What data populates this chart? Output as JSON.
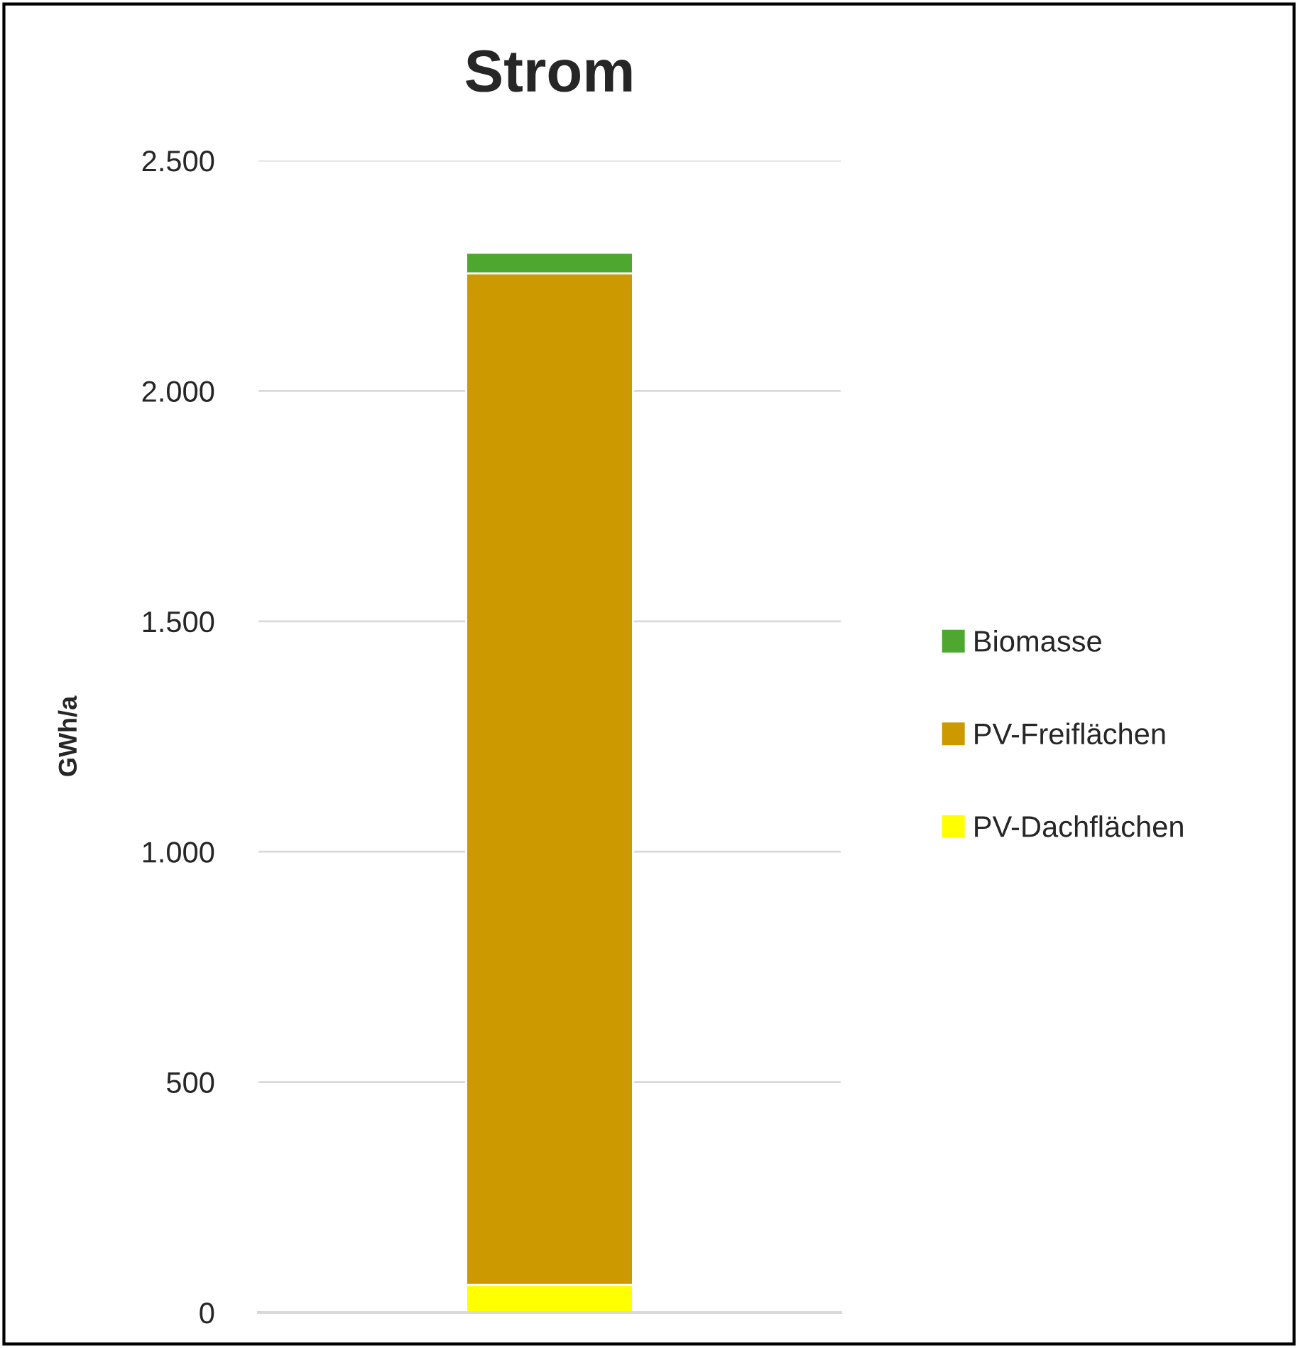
{
  "chart_data": {
    "type": "bar",
    "title": "Strom",
    "ylabel": "GWh/a",
    "stacked": true,
    "categories": [
      null
    ],
    "series": [
      {
        "name": "PV-Dachflächen",
        "color": "#ffff00",
        "values": [
          60
        ]
      },
      {
        "name": "PV-Freiflächen",
        "color": "#cc9900",
        "values": [
          2195
        ]
      },
      {
        "name": "Biomasse",
        "color": "#4ea72e",
        "values": [
          45
        ]
      }
    ],
    "ylim": [
      0,
      2500
    ],
    "yticks": [
      {
        "value": 0,
        "label": "0"
      },
      {
        "value": 500,
        "label": "500"
      },
      {
        "value": 1000,
        "label": "1.000"
      },
      {
        "value": 1500,
        "label": "1.500"
      },
      {
        "value": 2000,
        "label": "2.000"
      },
      {
        "value": 2500,
        "label": "2.500"
      }
    ],
    "grid": "y",
    "legend": "right"
  }
}
